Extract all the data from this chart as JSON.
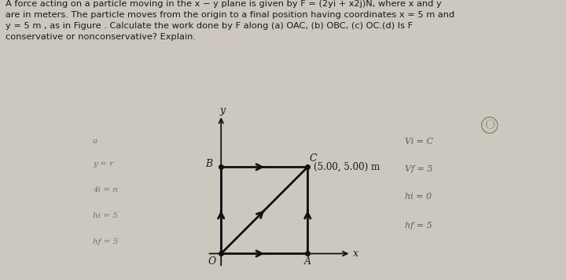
{
  "bg_color": "#ccc8c0",
  "text_color": "#1a1a1a",
  "title_text": "A force acting on a particle moving in the x − y plane is given by F = (2yi + x2j)N, where x and y\nare in meters. The particle moves from the origin to a final position having coordinates x = 5 m and\ny = 5 m , as in Figure . Calculate the work done by F along (a) OAC, (b) OBC, (c) OC.(d) Is F\nconservative or nonconservative? Explain.",
  "O": [
    0.0,
    0.0
  ],
  "A": [
    5.0,
    0.0
  ],
  "B": [
    0.0,
    5.0
  ],
  "C": [
    5.0,
    5.0
  ],
  "label_C": "(5.00, 5.00) m",
  "path_color": "#111111",
  "axis_color": "#111111",
  "left_notes": [
    "a",
    "y = r",
    "4i = n",
    "hi = 5",
    "hf = 5"
  ],
  "right_notes": [
    "Vi = C",
    "Vf = 5",
    "hi = 0",
    "hf = 5"
  ]
}
